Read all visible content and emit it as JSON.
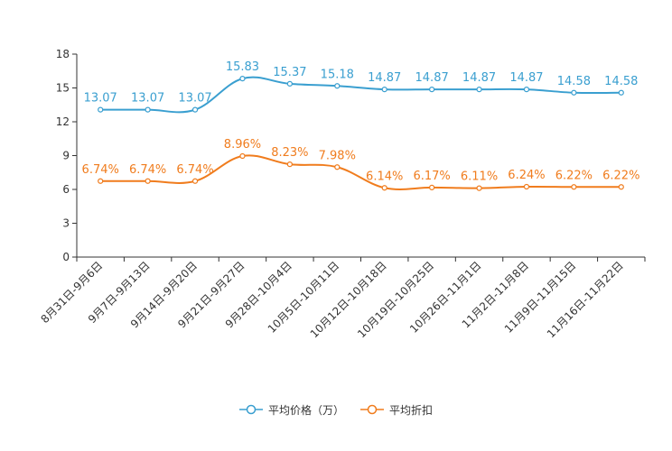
{
  "chart_data": {
    "type": "line",
    "categories": [
      "8月31日-9月6日",
      "9月7日-9月13日",
      "9月14日-9月20日",
      "9月21日-9月27日",
      "9月28日-10月4日",
      "10月5日-10月11日",
      "10月12日-10月18日",
      "10月19日-10月25日",
      "10月26日-11月1日",
      "11月2日-11月8日",
      "11月9日-11月15日",
      "11月16日-11月22日"
    ],
    "series": [
      {
        "name": "平均价格（万）",
        "color": "#3a9fd0",
        "values": [
          13.07,
          13.07,
          13.07,
          15.83,
          15.37,
          15.18,
          14.87,
          14.87,
          14.87,
          14.87,
          14.58,
          14.58
        ],
        "labels": [
          "13.07",
          "13.07",
          "13.07",
          "15.83",
          "15.37",
          "15.18",
          "14.87",
          "14.87",
          "14.87",
          "14.87",
          "14.58",
          "14.58"
        ]
      },
      {
        "name": "平均折扣",
        "color": "#f07c1d",
        "values": [
          6.74,
          6.74,
          6.74,
          8.96,
          8.23,
          7.98,
          6.14,
          6.17,
          6.11,
          6.24,
          6.22,
          6.22
        ],
        "labels": [
          "6.74%",
          "6.74%",
          "6.74%",
          "8.96%",
          "8.23%",
          "7.98%",
          "6.14%",
          "6.17%",
          "6.11%",
          "6.24%",
          "6.22%",
          "6.22%"
        ]
      }
    ],
    "yticks": [
      "0",
      "3",
      "6",
      "9",
      "12",
      "15",
      "18"
    ],
    "ylim": [
      0,
      18
    ],
    "title": "",
    "xlabel": "",
    "ylabel": "",
    "legend_position": "bottom-center",
    "grid": false
  }
}
